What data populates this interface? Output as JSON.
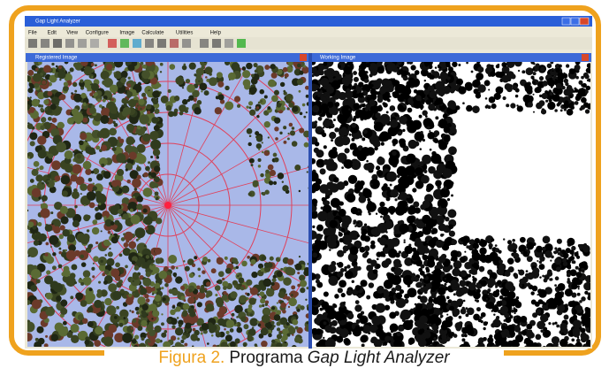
{
  "window": {
    "title": "Gap Light Analyzer",
    "menu": [
      "File",
      "Edit",
      "View",
      "Configure",
      "Image",
      "Calculate",
      "Utilities",
      "Help"
    ]
  },
  "panes": [
    {
      "title": "Registered Image"
    },
    {
      "title": "Working Image"
    }
  ],
  "caption": {
    "label": "Figura 2.",
    "text": "Programa",
    "italic": "Gap Light Analyzer"
  }
}
